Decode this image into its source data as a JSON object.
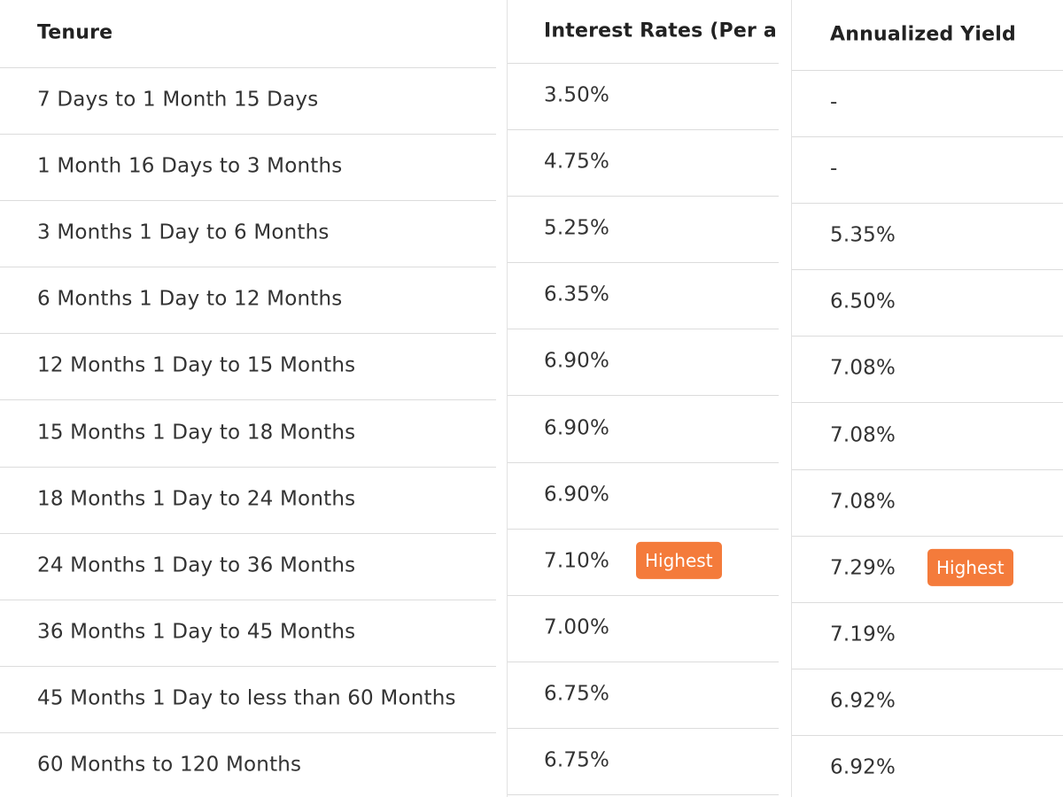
{
  "table": {
    "headers": [
      "Tenure",
      "Interest Rates (Per a",
      "Annualized Yield"
    ],
    "rows": [
      {
        "tenure": "7 Days to 1 Month 15 Days",
        "rate": "3.50%",
        "yield": "-"
      },
      {
        "tenure": "1 Month 16 Days to 3 Months",
        "rate": "4.75%",
        "yield": "-"
      },
      {
        "tenure": "3 Months 1 Day to 6 Months",
        "rate": "5.25%",
        "yield": "5.35%"
      },
      {
        "tenure": "6 Months 1 Day to 12 Months",
        "rate": "6.35%",
        "yield": "6.50%"
      },
      {
        "tenure": "12 Months 1 Day to 15 Months",
        "rate": "6.90%",
        "yield": "7.08%"
      },
      {
        "tenure": "15 Months 1 Day to 18 Months",
        "rate": "6.90%",
        "yield": "7.08%"
      },
      {
        "tenure": "18 Months 1 Day to 24 Months",
        "rate": "6.90%",
        "yield": "7.08%"
      },
      {
        "tenure": "24 Months 1 Day to 36 Months",
        "rate": "7.10%",
        "rate_badge": "Highest",
        "yield": "7.29%",
        "yield_badge": "Highest"
      },
      {
        "tenure": "36 Months 1 Day to 45 Months",
        "rate": "7.00%",
        "yield": "7.19%"
      },
      {
        "tenure": "45 Months 1 Day to less than 60 Months",
        "rate": "6.75%",
        "yield": "6.92%"
      },
      {
        "tenure": "60 Months to 120 Months",
        "rate": "6.75%",
        "yield": "6.92%"
      }
    ]
  }
}
